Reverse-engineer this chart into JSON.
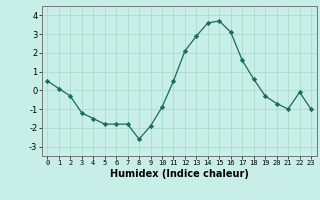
{
  "x": [
    0,
    1,
    2,
    3,
    4,
    5,
    6,
    7,
    8,
    9,
    10,
    11,
    12,
    13,
    14,
    15,
    16,
    17,
    18,
    19,
    20,
    21,
    22,
    23
  ],
  "y": [
    0.5,
    0.1,
    -0.3,
    -1.2,
    -1.5,
    -1.8,
    -1.8,
    -1.8,
    -2.6,
    -1.9,
    -0.9,
    0.5,
    2.1,
    2.9,
    3.6,
    3.7,
    3.1,
    1.6,
    0.6,
    -0.3,
    -0.7,
    -1.0,
    -0.1,
    -1.0
  ],
  "line_color": "#1a6b5a",
  "marker": "D",
  "marker_size": 2.2,
  "bg_color": "#c8eee8",
  "grid_color": "#aaddcc",
  "xlabel": "Humidex (Indice chaleur)",
  "xlabel_fontsize": 7,
  "ylabel_ticks": [
    4,
    3,
    2,
    1,
    0,
    -1,
    -2,
    -3
  ],
  "xtick_labels": [
    "0",
    "1",
    "2",
    "3",
    "4",
    "5",
    "6",
    "7",
    "8",
    "9",
    "10",
    "11",
    "12",
    "13",
    "14",
    "15",
    "16",
    "17",
    "18",
    "19",
    "20",
    "21",
    "22",
    "23"
  ],
  "ylim": [
    -3.5,
    4.5
  ],
  "xlim": [
    -0.5,
    23.5
  ]
}
